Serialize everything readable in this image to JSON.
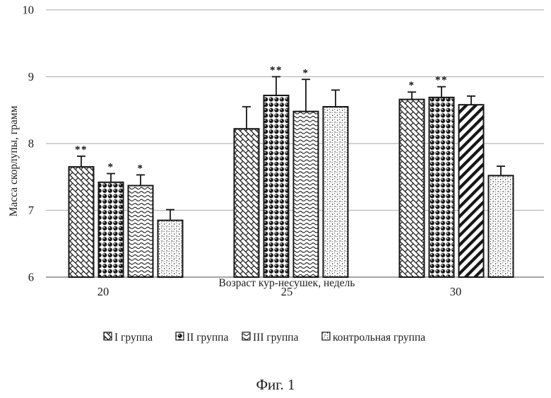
{
  "figure": {
    "caption": "Фиг. 1"
  },
  "colors": {
    "bar_stroke": "#161616",
    "gridline": "#b8b8b8",
    "axis_line": "#9a9a9a",
    "text": "#1c1c1c"
  },
  "chart_data": {
    "type": "bar",
    "xlabel": "Возраст кур-несушек, недель",
    "ylabel": "Масса скорлупы, грамм",
    "categories": [
      "20",
      "25",
      "30"
    ],
    "ylim": [
      6,
      10
    ],
    "yticks": [
      6,
      7,
      8,
      9,
      10
    ],
    "grid": true,
    "legend_position": "bottom",
    "error_bars": true,
    "series": [
      {
        "name": "I группа",
        "pattern": "diagonal-brick",
        "values": [
          7.65,
          8.22,
          8.66
        ],
        "errors": [
          0.16,
          0.33,
          0.11
        ],
        "significance": [
          "**",
          "",
          "*"
        ]
      },
      {
        "name": "II группа",
        "pattern": "dark-balls",
        "values": [
          7.42,
          8.72,
          8.69
        ],
        "errors": [
          0.13,
          0.28,
          0.16
        ],
        "significance": [
          "*",
          "**",
          "**"
        ]
      },
      {
        "name": "III группа",
        "pattern": "wave",
        "pattern_overrides": {
          "2": "diagonal-stripe"
        },
        "values": [
          7.37,
          8.48,
          8.58
        ],
        "errors": [
          0.16,
          0.48,
          0.13
        ],
        "significance": [
          "*",
          "*",
          ""
        ]
      },
      {
        "name": "контрольная группа",
        "pattern": "dots",
        "values": [
          6.85,
          8.55,
          7.52
        ],
        "errors": [
          0.16,
          0.25,
          0.14
        ],
        "significance": [
          "",
          "",
          ""
        ]
      }
    ]
  }
}
